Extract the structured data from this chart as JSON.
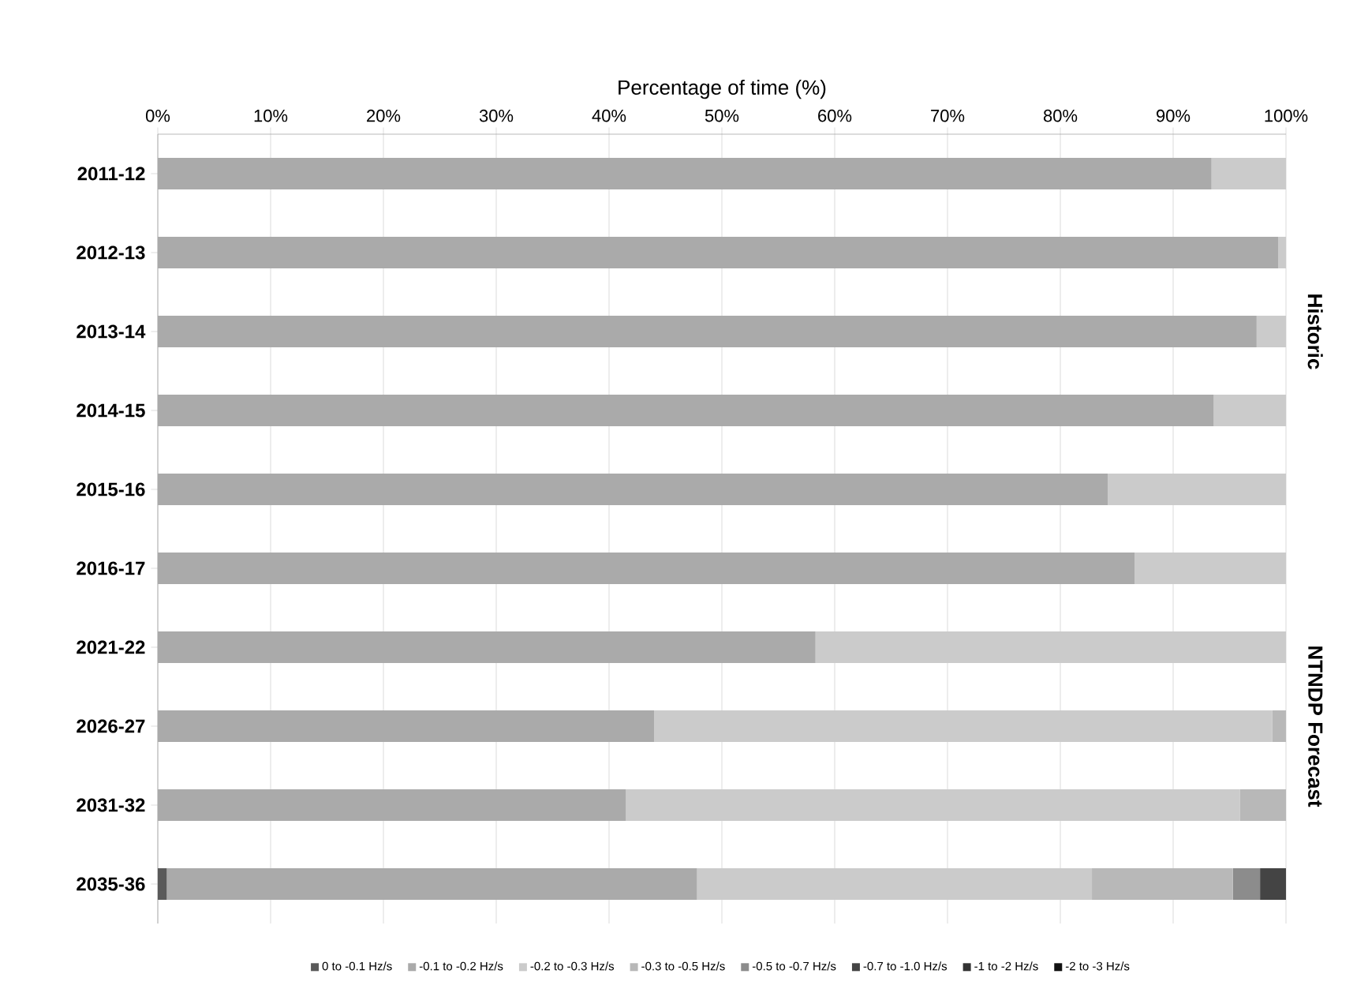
{
  "chart_data": {
    "type": "bar",
    "orientation": "horizontal",
    "stacked": true,
    "xlabel": "Percentage of time (%)",
    "categories": [
      "2011-12",
      "2012-13",
      "2013-14",
      "2014-15",
      "2015-16",
      "2016-17",
      "2021-22",
      "2026-27",
      "2031-32",
      "2035-36"
    ],
    "series": [
      {
        "name": "0 to -0.1 Hz/s",
        "color": "#5a5a5a",
        "values": [
          0,
          0,
          0,
          0,
          0,
          0,
          0,
          0,
          0,
          0.8
        ]
      },
      {
        "name": "-0.1 to -0.2 Hz/s",
        "color": "#aaaaaa",
        "values": [
          93.4,
          99.3,
          97.4,
          93.6,
          84.2,
          86.6,
          58.3,
          44.0,
          41.5,
          47.0
        ]
      },
      {
        "name": "-0.2 to -0.3 Hz/s",
        "color": "#cbcbcb",
        "values": [
          6.6,
          0.7,
          2.6,
          6.4,
          15.8,
          13.4,
          41.7,
          54.8,
          54.4,
          35.0
        ]
      },
      {
        "name": "-0.3 to -0.5 Hz/s",
        "color": "#b8b8b8",
        "values": [
          0,
          0,
          0,
          0,
          0,
          0,
          0,
          1.2,
          4.1,
          12.5
        ]
      },
      {
        "name": "-0.5 to -0.7 Hz/s",
        "color": "#8c8c8c",
        "values": [
          0,
          0,
          0,
          0,
          0,
          0,
          0,
          0,
          0,
          2.4
        ]
      },
      {
        "name": "-0.7 to -1.0 Hz/s",
        "color": "#444444",
        "values": [
          0,
          0,
          0,
          0,
          0,
          0,
          0,
          0,
          0,
          2.3
        ]
      },
      {
        "name": "-1 to -2 Hz/s",
        "color": "#333333",
        "values": [
          0,
          0,
          0,
          0,
          0,
          0,
          0,
          0,
          0,
          0
        ]
      },
      {
        "name": "-2 to -3 Hz/s",
        "color": "#111111",
        "values": [
          0,
          0,
          0,
          0,
          0,
          0,
          0,
          0,
          0,
          0
        ]
      }
    ],
    "xlim": [
      0,
      100
    ],
    "xticks": [
      {
        "value": 0,
        "label": "0%"
      },
      {
        "value": 10,
        "label": "10%"
      },
      {
        "value": 20,
        "label": "20%"
      },
      {
        "value": 30,
        "label": "30%"
      },
      {
        "value": 40,
        "label": "40%"
      },
      {
        "value": 50,
        "label": "50%"
      },
      {
        "value": 60,
        "label": "60%"
      },
      {
        "value": 70,
        "label": "70%"
      },
      {
        "value": 80,
        "label": "80%"
      },
      {
        "value": 90,
        "label": "90%"
      },
      {
        "value": 100,
        "label": "100%"
      }
    ],
    "grid": "x",
    "legend": "bottom",
    "annotations": [
      "Historic",
      "NTNDP Forecast"
    ]
  }
}
